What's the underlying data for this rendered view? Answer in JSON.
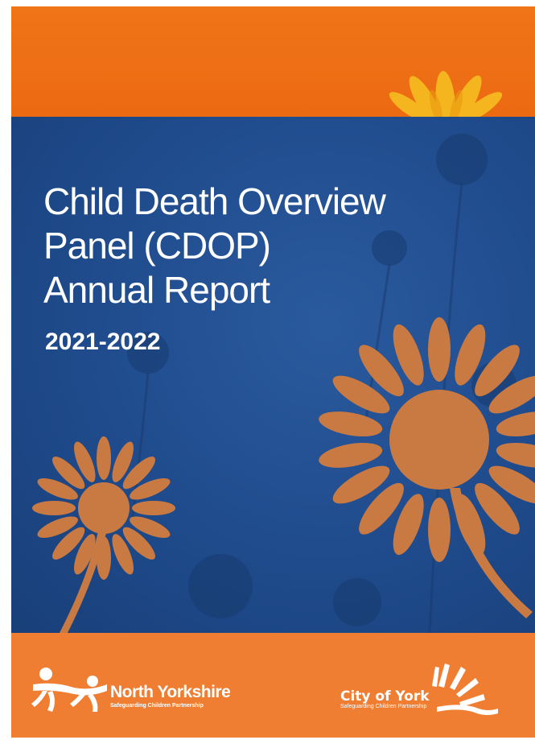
{
  "cover": {
    "title_lines": [
      "Child Death Overview",
      "Panel (CDOP)",
      "Annual Report"
    ],
    "years": "2021-2022",
    "colors": {
      "orange_top": "#f07418",
      "blue_panel": "#1f4b8c",
      "orange_bottom": "#ef7d32",
      "flower_orange": "#c97a42",
      "yellow_flower": "#f5b51e"
    }
  },
  "logos": {
    "north_yorkshire": {
      "name": "North Yorkshire",
      "subtitle": "Safeguarding Children Partnership",
      "icon": "children-figures-icon"
    },
    "city_of_york": {
      "name": "City of York",
      "subtitle": "Safeguarding Children Partnership",
      "icon": "sun-rays-icon"
    }
  }
}
